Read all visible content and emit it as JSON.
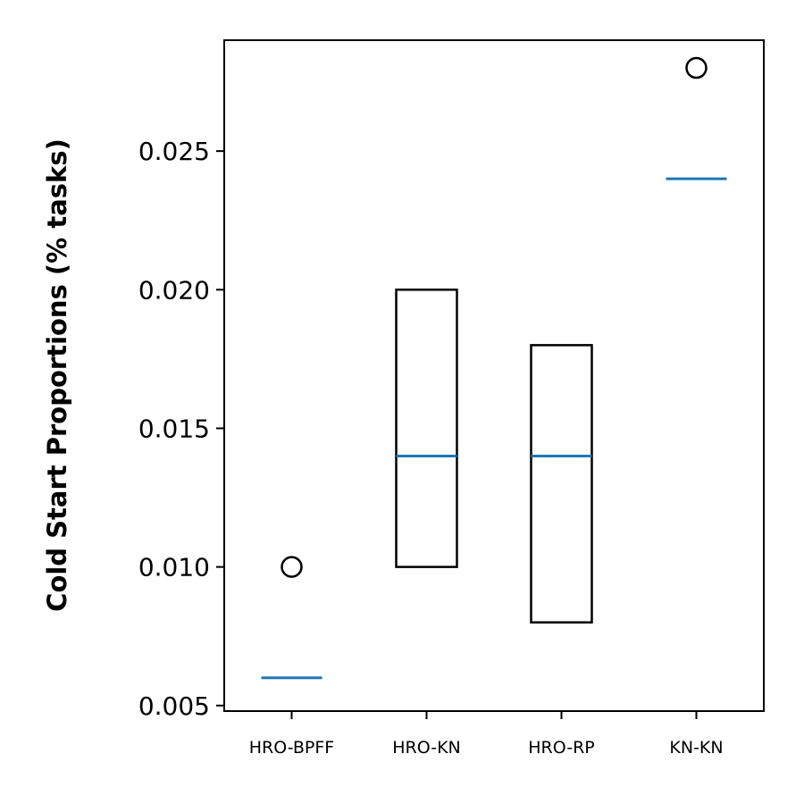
{
  "chart_data": {
    "type": "box",
    "title": "",
    "xlabel": "",
    "ylabel": "Cold Start Proportions (% tasks)",
    "ylim": [
      0.0048,
      0.029
    ],
    "yticks": [
      0.005,
      0.01,
      0.015,
      0.02,
      0.025
    ],
    "ytick_labels": [
      "0.005",
      "0.010",
      "0.015",
      "0.020",
      "0.025"
    ],
    "categories": [
      "HRO-BPFF",
      "HRO-KN",
      "HRO-RP",
      "KN-KN"
    ],
    "boxes": [
      {
        "category": "HRO-BPFF",
        "q1": 0.006,
        "median": 0.006,
        "q3": 0.006,
        "whisker_low": 0.006,
        "whisker_high": 0.006,
        "outliers": [
          0.01
        ]
      },
      {
        "category": "HRO-KN",
        "q1": 0.01,
        "median": 0.014,
        "q3": 0.02,
        "whisker_low": 0.01,
        "whisker_high": 0.02,
        "outliers": []
      },
      {
        "category": "HRO-RP",
        "q1": 0.008,
        "median": 0.014,
        "q3": 0.018,
        "whisker_low": 0.008,
        "whisker_high": 0.018,
        "outliers": []
      },
      {
        "category": "KN-KN",
        "q1": 0.024,
        "median": 0.024,
        "q3": 0.024,
        "whisker_low": 0.024,
        "whisker_high": 0.024,
        "outliers": [
          0.028
        ]
      }
    ],
    "grid": false,
    "colors": {
      "box": "#000000",
      "median": "#1f77b4",
      "outlier": "#000000"
    }
  }
}
